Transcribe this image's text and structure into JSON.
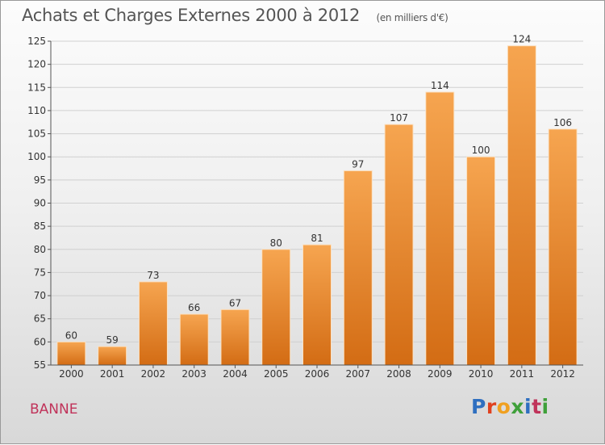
{
  "title": "Achats et Charges Externes 2000 à 2012",
  "unit_label": "(en milliers d'€)",
  "commune": "BANNE",
  "logo_text": [
    "P",
    "r",
    "o",
    "x",
    "i",
    "t",
    "i"
  ],
  "colors": {
    "bar_top": "#f6a550",
    "bar_bottom": "#d36c14",
    "title": "#555555",
    "commune": "#c0335a"
  },
  "chart_data": {
    "type": "bar",
    "categories": [
      "2000",
      "2001",
      "2002",
      "2003",
      "2004",
      "2005",
      "2006",
      "2007",
      "2008",
      "2009",
      "2010",
      "2011",
      "2012"
    ],
    "values": [
      60,
      59,
      73,
      66,
      67,
      80,
      81,
      97,
      107,
      114,
      100,
      124,
      106
    ],
    "ylim": [
      55,
      125
    ],
    "yticks": [
      55,
      60,
      65,
      70,
      75,
      80,
      85,
      90,
      95,
      100,
      105,
      110,
      115,
      120,
      125
    ],
    "grid": true,
    "data_labels": true
  }
}
